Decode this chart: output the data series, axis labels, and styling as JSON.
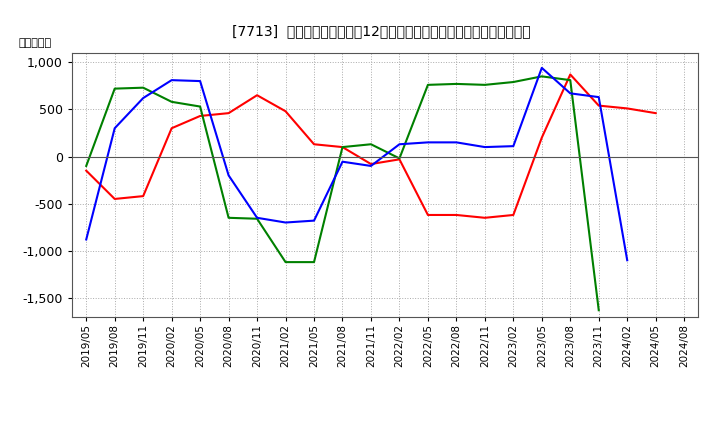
{
  "title": "[7713]  キャッシュフローの12か月移動合計の対前年同期増減額の推移",
  "ylabel": "（百万円）",
  "x_labels": [
    "2019/05",
    "2019/08",
    "2019/11",
    "2020/02",
    "2020/05",
    "2020/08",
    "2020/11",
    "2021/02",
    "2021/05",
    "2021/08",
    "2021/11",
    "2022/02",
    "2022/05",
    "2022/08",
    "2022/11",
    "2023/02",
    "2023/05",
    "2023/08",
    "2023/11",
    "2024/02",
    "2024/05",
    "2024/08"
  ],
  "operating_cf": [
    -150,
    -450,
    -420,
    300,
    430,
    460,
    650,
    480,
    130,
    100,
    -80,
    -30,
    -620,
    -620,
    -650,
    -620,
    200,
    870,
    540,
    510,
    460,
    null
  ],
  "investing_cf": [
    -100,
    720,
    730,
    580,
    530,
    -650,
    -660,
    -1120,
    -1120,
    100,
    130,
    -20,
    760,
    770,
    760,
    790,
    850,
    810,
    -1630,
    null,
    null,
    null
  ],
  "free_cf": [
    -880,
    300,
    620,
    810,
    800,
    -200,
    -650,
    -700,
    -680,
    -55,
    -100,
    130,
    150,
    150,
    100,
    110,
    940,
    670,
    630,
    -1100,
    null,
    null
  ],
  "ylim": [
    -1700,
    1100
  ],
  "yticks": [
    -1500,
    -1000,
    -500,
    0,
    500,
    1000
  ],
  "colors": {
    "operating": "#ff0000",
    "investing": "#008000",
    "free": "#0000ff"
  },
  "background_color": "#ffffff",
  "grid_color": "#aaaaaa"
}
